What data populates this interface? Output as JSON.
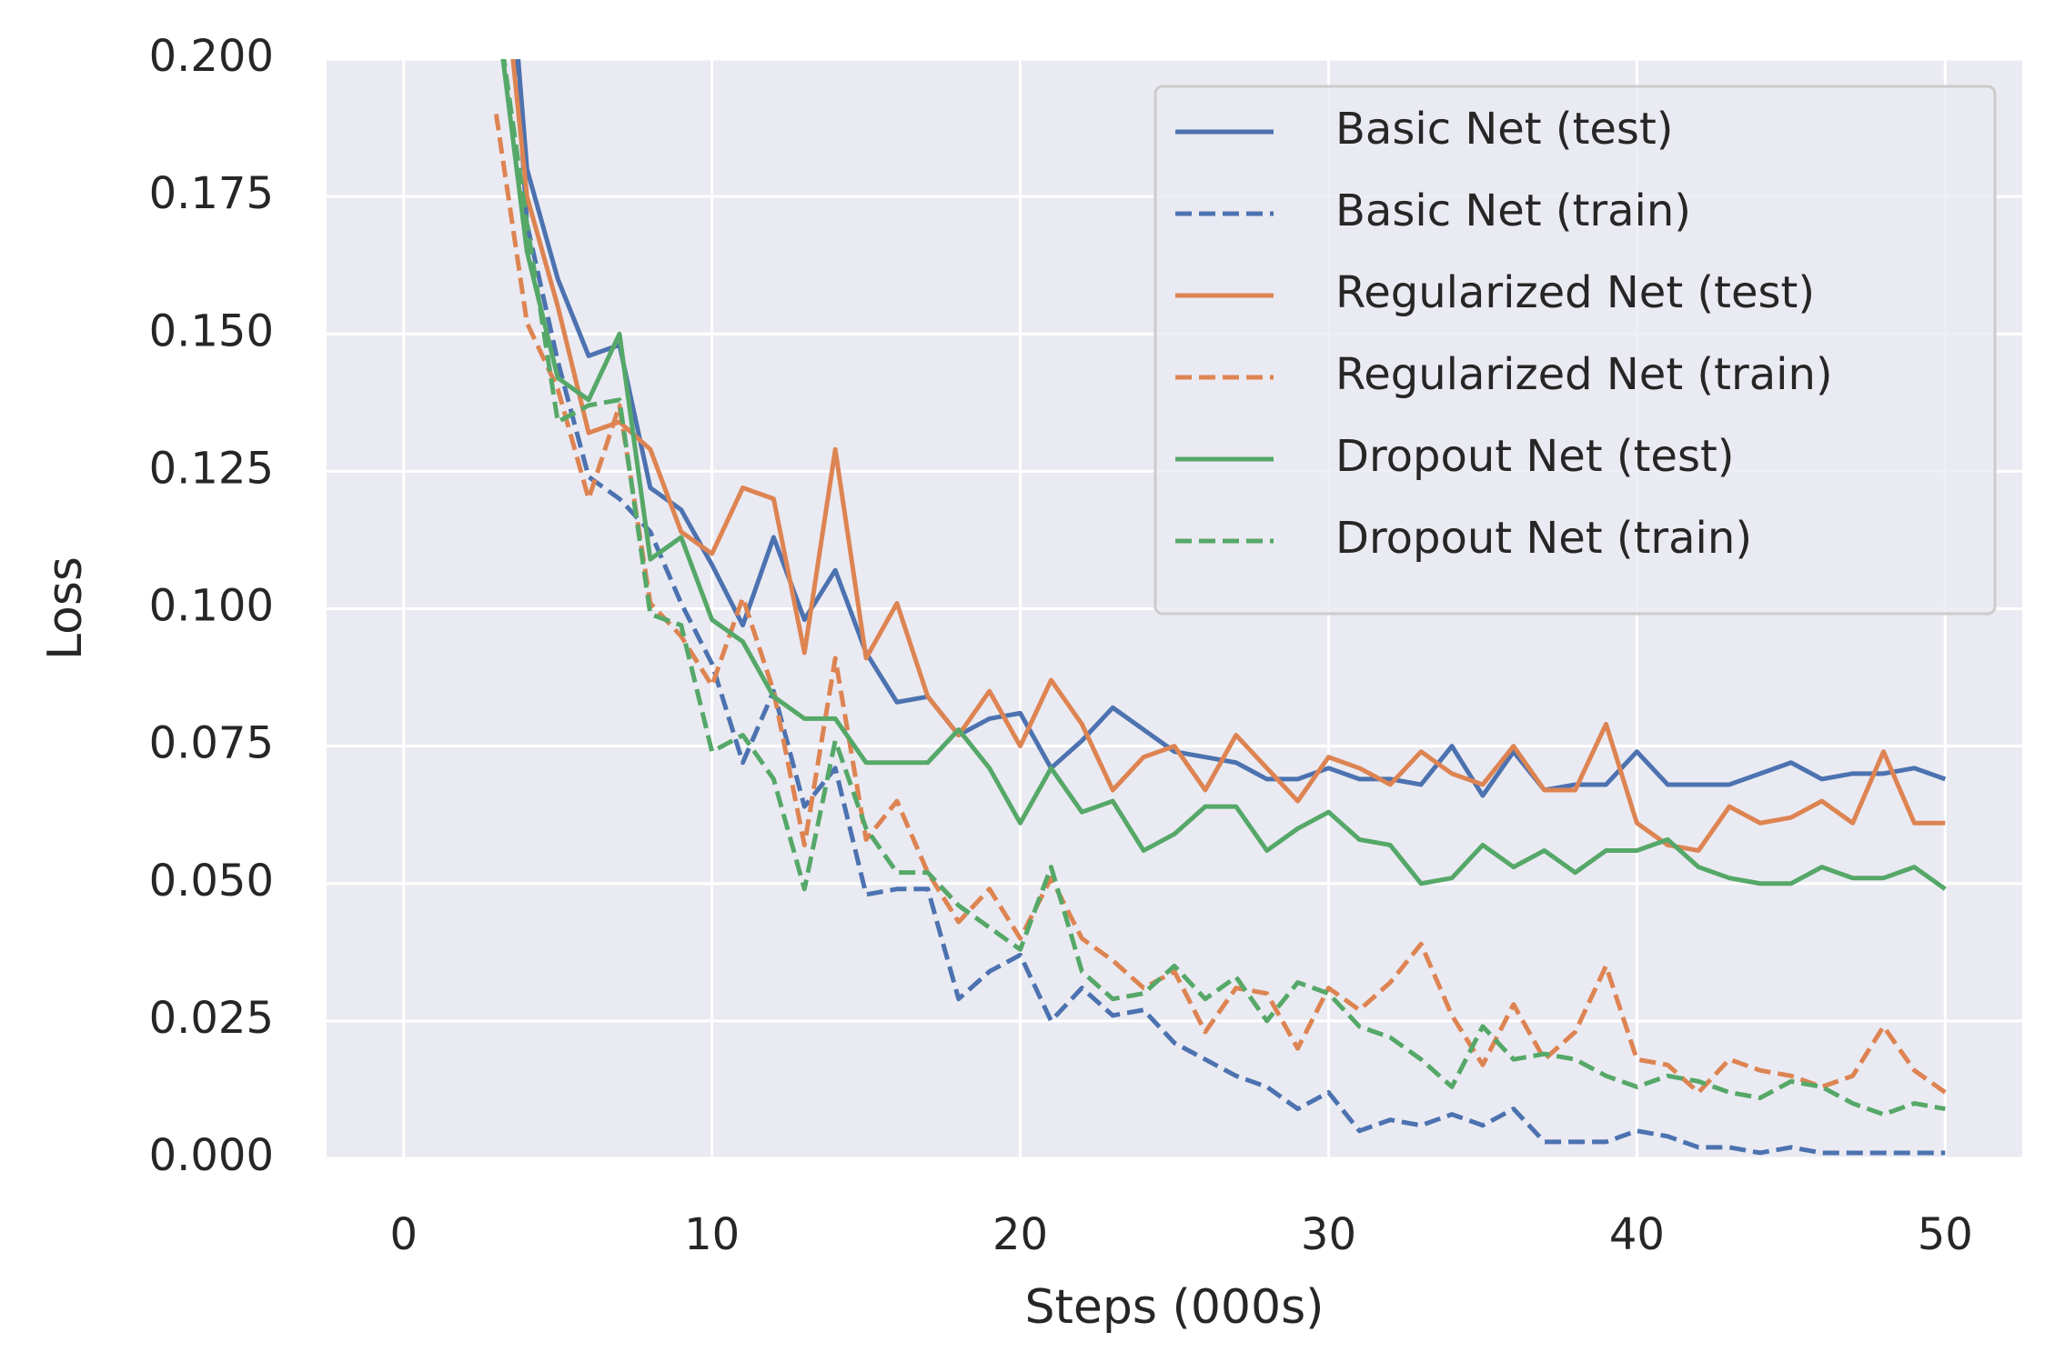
{
  "chart_data": {
    "type": "line",
    "xlabel": "Steps (000s)",
    "ylabel": "Loss",
    "x": [
      3,
      4,
      5,
      6,
      7,
      8,
      9,
      10,
      11,
      12,
      13,
      14,
      15,
      16,
      17,
      18,
      19,
      20,
      21,
      22,
      23,
      24,
      25,
      26,
      27,
      28,
      29,
      30,
      31,
      32,
      33,
      34,
      35,
      36,
      37,
      38,
      39,
      40,
      41,
      42,
      43,
      44,
      45,
      46,
      47,
      48,
      49,
      50
    ],
    "xlim": [
      -2.5,
      52.5
    ],
    "xticks": [
      0,
      10,
      20,
      30,
      40,
      50
    ],
    "ylim": [
      0,
      0.2
    ],
    "yticks": [
      {
        "value": 0,
        "label": "0.000"
      },
      {
        "value": 0.025,
        "label": "0.025"
      },
      {
        "value": 0.05,
        "label": "0.050"
      },
      {
        "value": 0.075,
        "label": "0.075"
      },
      {
        "value": 0.1,
        "label": "0.100"
      },
      {
        "value": 0.125,
        "label": "0.125"
      },
      {
        "value": 0.15,
        "label": "0.150"
      },
      {
        "value": 0.175,
        "label": "0.175"
      },
      {
        "value": 0.2,
        "label": "0.200"
      }
    ],
    "grid": true,
    "legend": "upper right",
    "series": [
      {
        "name": "Basic Net (test)",
        "color": "#4c72b0",
        "linestyle": "solid",
        "values": [
          0.25,
          0.18,
          0.16,
          0.146,
          0.148,
          0.122,
          0.118,
          0.108,
          0.097,
          0.113,
          0.098,
          0.107,
          0.092,
          0.083,
          0.084,
          0.077,
          0.08,
          0.081,
          0.071,
          0.076,
          0.082,
          0.078,
          0.074,
          0.073,
          0.072,
          0.069,
          0.069,
          0.071,
          0.069,
          0.069,
          0.068,
          0.075,
          0.066,
          0.074,
          0.067,
          0.068,
          0.068,
          0.074,
          0.068,
          0.068,
          0.068,
          0.07,
          0.072,
          0.069,
          0.07,
          0.07,
          0.071,
          0.069
        ]
      },
      {
        "name": "Basic Net (train)",
        "color": "#4c72b0",
        "linestyle": "dashed",
        "values": [
          0.26,
          0.17,
          0.145,
          0.124,
          0.12,
          0.114,
          0.101,
          0.09,
          0.072,
          0.085,
          0.064,
          0.071,
          0.048,
          0.049,
          0.049,
          0.029,
          0.034,
          0.037,
          0.025,
          0.031,
          0.026,
          0.027,
          0.021,
          0.018,
          0.015,
          0.013,
          0.009,
          0.012,
          0.005,
          0.007,
          0.006,
          0.008,
          0.006,
          0.009,
          0.003,
          0.003,
          0.003,
          0.005,
          0.004,
          0.002,
          0.002,
          0.001,
          0.002,
          0.001,
          0.001,
          0.001,
          0.001,
          0.001
        ]
      },
      {
        "name": "Regularized Net (test)",
        "color": "#dd8452",
        "linestyle": "solid",
        "values": [
          0.23,
          0.175,
          0.155,
          0.132,
          0.134,
          0.129,
          0.114,
          0.11,
          0.122,
          0.12,
          0.092,
          0.129,
          0.091,
          0.101,
          0.084,
          0.077,
          0.085,
          0.075,
          0.087,
          0.079,
          0.067,
          0.073,
          0.075,
          0.067,
          0.077,
          0.071,
          0.065,
          0.073,
          0.071,
          0.068,
          0.074,
          0.07,
          0.068,
          0.075,
          0.067,
          0.067,
          0.079,
          0.061,
          0.057,
          0.056,
          0.064,
          0.061,
          0.062,
          0.065,
          0.061,
          0.074,
          0.061,
          0.061
        ]
      },
      {
        "name": "Regularized Net (train)",
        "color": "#dd8452",
        "linestyle": "dashed",
        "values": [
          0.19,
          0.152,
          0.14,
          0.12,
          0.137,
          0.101,
          0.095,
          0.086,
          0.102,
          0.085,
          0.057,
          0.091,
          0.058,
          0.065,
          0.052,
          0.043,
          0.049,
          0.04,
          0.051,
          0.04,
          0.036,
          0.031,
          0.034,
          0.023,
          0.031,
          0.03,
          0.02,
          0.031,
          0.027,
          0.032,
          0.039,
          0.026,
          0.017,
          0.028,
          0.018,
          0.023,
          0.035,
          0.018,
          0.017,
          0.012,
          0.018,
          0.016,
          0.015,
          0.013,
          0.015,
          0.024,
          0.016,
          0.012
        ]
      },
      {
        "name": "Dropout Net (test)",
        "color": "#55a868",
        "linestyle": "solid",
        "values": [
          0.21,
          0.165,
          0.142,
          0.138,
          0.15,
          0.109,
          0.113,
          0.098,
          0.094,
          0.084,
          0.08,
          0.08,
          0.072,
          0.072,
          0.072,
          0.078,
          0.071,
          0.061,
          0.071,
          0.063,
          0.065,
          0.056,
          0.059,
          0.064,
          0.064,
          0.056,
          0.06,
          0.063,
          0.058,
          0.057,
          0.05,
          0.051,
          0.057,
          0.053,
          0.056,
          0.052,
          0.056,
          0.056,
          0.058,
          0.053,
          0.051,
          0.05,
          0.05,
          0.053,
          0.051,
          0.051,
          0.053,
          0.049
        ]
      },
      {
        "name": "Dropout Net (train)",
        "color": "#55a868",
        "linestyle": "dashed",
        "values": [
          0.21,
          0.17,
          0.134,
          0.137,
          0.138,
          0.099,
          0.097,
          0.074,
          0.077,
          0.069,
          0.049,
          0.076,
          0.06,
          0.052,
          0.052,
          0.046,
          0.042,
          0.038,
          0.053,
          0.034,
          0.029,
          0.03,
          0.035,
          0.029,
          0.033,
          0.025,
          0.032,
          0.03,
          0.024,
          0.022,
          0.018,
          0.013,
          0.024,
          0.018,
          0.019,
          0.018,
          0.015,
          0.013,
          0.015,
          0.014,
          0.012,
          0.011,
          0.014,
          0.013,
          0.01,
          0.008,
          0.01,
          0.009
        ]
      }
    ]
  }
}
